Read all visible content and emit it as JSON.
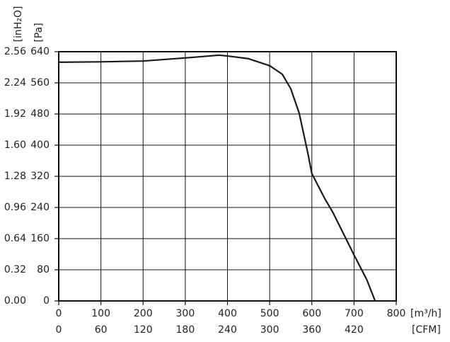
{
  "chart_data": {
    "type": "line",
    "x": [
      0,
      100,
      200,
      300,
      380,
      400,
      450,
      500,
      530,
      550,
      570,
      590,
      600,
      630,
      650,
      700,
      730,
      750
    ],
    "values": [
      613,
      614,
      616,
      624,
      631,
      629,
      622,
      604,
      582,
      545,
      482,
      382,
      327,
      264,
      227,
      118,
      55,
      0
    ],
    "color": "#1a1a1a",
    "xlabel": "[m³/h]",
    "x2label": "[CFM]",
    "ylabel": "[Pa]",
    "y2label": "[inH₂O]",
    "xlim": [
      0,
      800
    ],
    "xticks": [
      0,
      100,
      200,
      300,
      400,
      500,
      600,
      700,
      800
    ],
    "x2lim": [
      0,
      480
    ],
    "x2ticks": [
      0,
      60,
      120,
      180,
      240,
      300,
      360,
      420
    ],
    "ylim": [
      0,
      640
    ],
    "yticks": [
      0,
      80,
      160,
      240,
      320,
      400,
      480,
      560,
      640
    ],
    "y2lim": [
      0,
      2.56
    ],
    "y2ticks": [
      {
        "value": 0,
        "label": "0.00"
      },
      0.32,
      0.64,
      0.96,
      1.28,
      {
        "value": 1.6,
        "label": "1.60"
      },
      1.92,
      2.24,
      2.56
    ],
    "grid": true
  }
}
